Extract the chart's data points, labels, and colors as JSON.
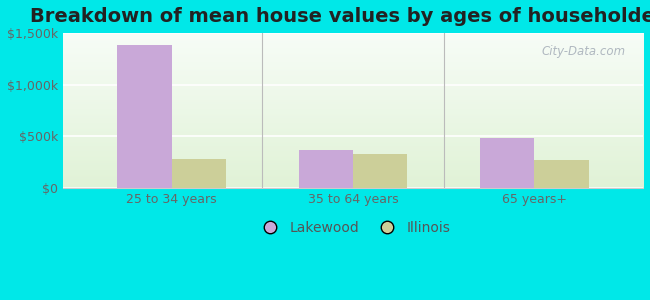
{
  "title": "Breakdown of mean house values by ages of householders",
  "categories": [
    "25 to 34 years",
    "35 to 64 years",
    "65 years+"
  ],
  "lakewood_values": [
    1380000,
    370000,
    490000
  ],
  "illinois_values": [
    280000,
    330000,
    270000
  ],
  "lakewood_color": "#c9a8d8",
  "illinois_color": "#cccf99",
  "background_outer": "#00e8e8",
  "ylim": [
    0,
    1500000
  ],
  "yticks": [
    0,
    500000,
    1000000,
    1500000
  ],
  "ytick_labels": [
    "$0",
    "$500k",
    "$1,000k",
    "$1,500k"
  ],
  "legend_labels": [
    "Lakewood",
    "Illinois"
  ],
  "bar_width": 0.3,
  "title_fontsize": 14,
  "tick_fontsize": 9,
  "legend_fontsize": 10,
  "watermark": "City-Data.com"
}
